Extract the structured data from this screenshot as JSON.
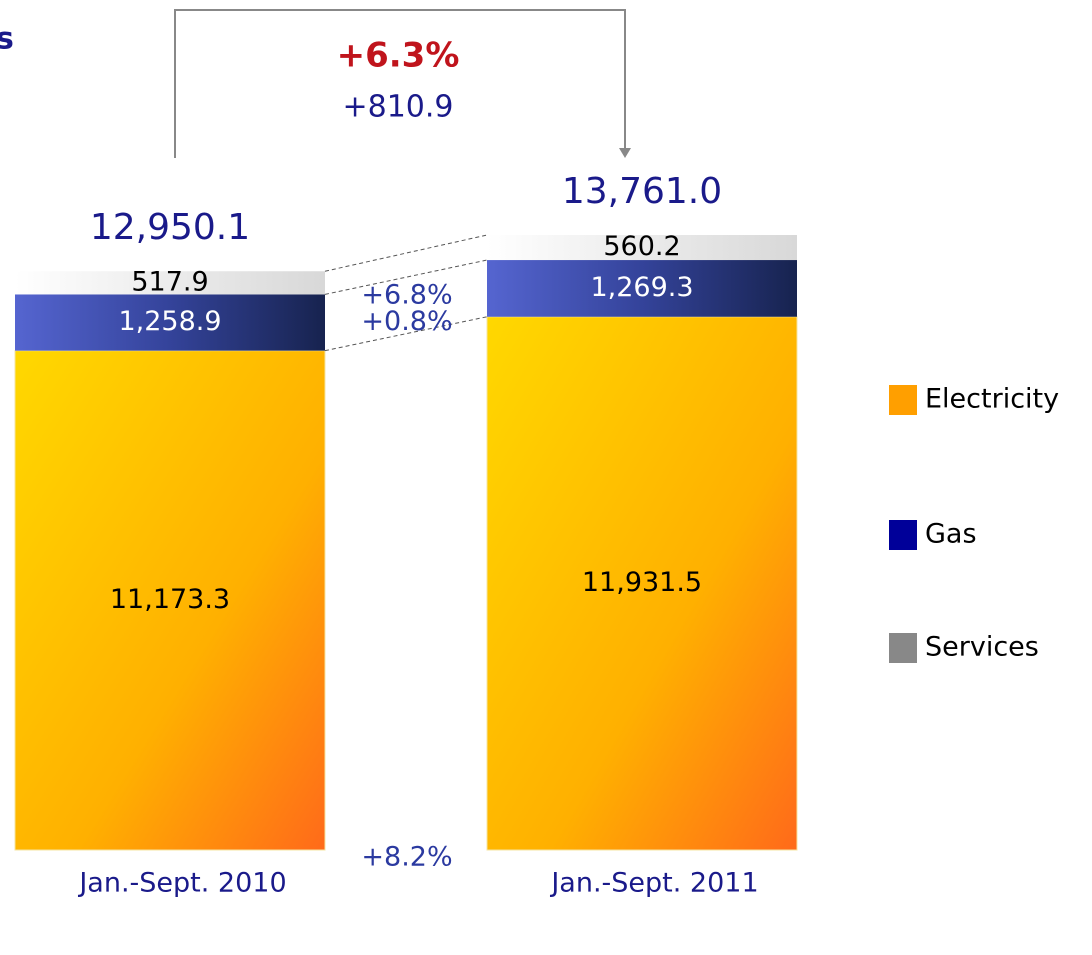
{
  "chart_data": {
    "type": "bar",
    "stacked": true,
    "title": "s",
    "categories": [
      "Jan.-Sept. 2010",
      "Jan.-Sept. 2011"
    ],
    "series": [
      {
        "name": "Electricity",
        "color": "#ff9f00",
        "values": [
          11173.3,
          11931.5
        ],
        "value_labels": [
          "11,173.3",
          "11,931.5"
        ]
      },
      {
        "name": "Gas",
        "color": "#000099",
        "values": [
          1258.9,
          1269.3
        ],
        "value_labels": [
          "1,258.9",
          "1,269.3"
        ]
      },
      {
        "name": "Services",
        "color": "#888888",
        "values": [
          517.9,
          560.2
        ],
        "value_labels": [
          "517.9",
          "560.2"
        ]
      }
    ],
    "totals": [
      12950.1,
      13761.0
    ],
    "total_labels": [
      "12,950.1",
      "13,761.0"
    ],
    "change_labels": [
      "+6.8%",
      "+0.8%",
      "+8.2%"
    ],
    "total_change": {
      "percent": "+6.3%",
      "absolute": "+810.9"
    },
    "legend": "right"
  }
}
